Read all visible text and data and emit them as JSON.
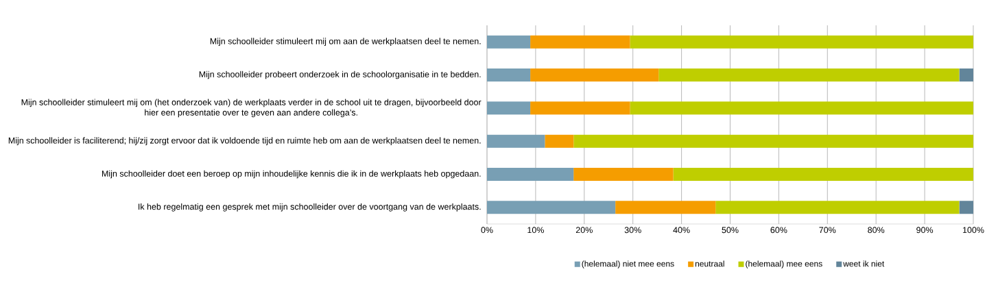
{
  "chart_data": {
    "type": "bar",
    "orientation": "horizontal",
    "stacked": true,
    "categories": [
      "Mijn schoolleider stimuleert mij om aan de werkplaatsen deel te nemen.",
      "Mijn schoolleider probeert onderzoek in de schoolorganisatie in te bedden.",
      "Mijn schoolleider stimuleert mij om (het onderzoek van) de werkplaats verder in de school uit te dragen, bijvoorbeeld door hier een presentatie over te geven aan andere collega’s.",
      "Mijn schoolleider is faciliterend; hij/zij zorgt ervoor dat ik voldoende tijd en ruimte heb om aan de werkplaatsen deel te nemen.",
      "Mijn schoolleider doet een beroep op mijn inhoudelijke kennis die ik in de werkplaats heb opgedaan.",
      "Ik heb regelmatig een gesprek met mijn schoolleider over de voortgang van de werkplaats."
    ],
    "series": [
      {
        "name": "(helemaal) niet mee eens",
        "color": "#789fb4",
        "values": [
          8.9,
          8.9,
          8.9,
          11.9,
          17.8,
          26.4
        ]
      },
      {
        "name": "neutraal",
        "color": "#f59d00",
        "values": [
          20.5,
          26.4,
          20.5,
          5.9,
          20.5,
          20.6
        ]
      },
      {
        "name": "(helemaal) mee eens",
        "color": "#bfce00",
        "values": [
          70.6,
          61.8,
          70.6,
          82.2,
          61.7,
          50.1
        ]
      },
      {
        "name": "weet ik niet",
        "color": "#62859a",
        "values": [
          null,
          2.9,
          null,
          null,
          null,
          2.9
        ]
      }
    ],
    "xlim": [
      0,
      100
    ],
    "xticks": [
      {
        "value": 0,
        "label": "0%"
      },
      {
        "value": 10,
        "label": "10%"
      },
      {
        "value": 20,
        "label": "20%"
      },
      {
        "value": 30,
        "label": "30%"
      },
      {
        "value": 40,
        "label": "40%"
      },
      {
        "value": 50,
        "label": "50%"
      },
      {
        "value": 60,
        "label": "60%"
      },
      {
        "value": 70,
        "label": "70%"
      },
      {
        "value": 80,
        "label": "80%"
      },
      {
        "value": 90,
        "label": "90%"
      },
      {
        "value": 100,
        "label": "100%"
      }
    ],
    "grid": "x",
    "legend": "bottom"
  }
}
